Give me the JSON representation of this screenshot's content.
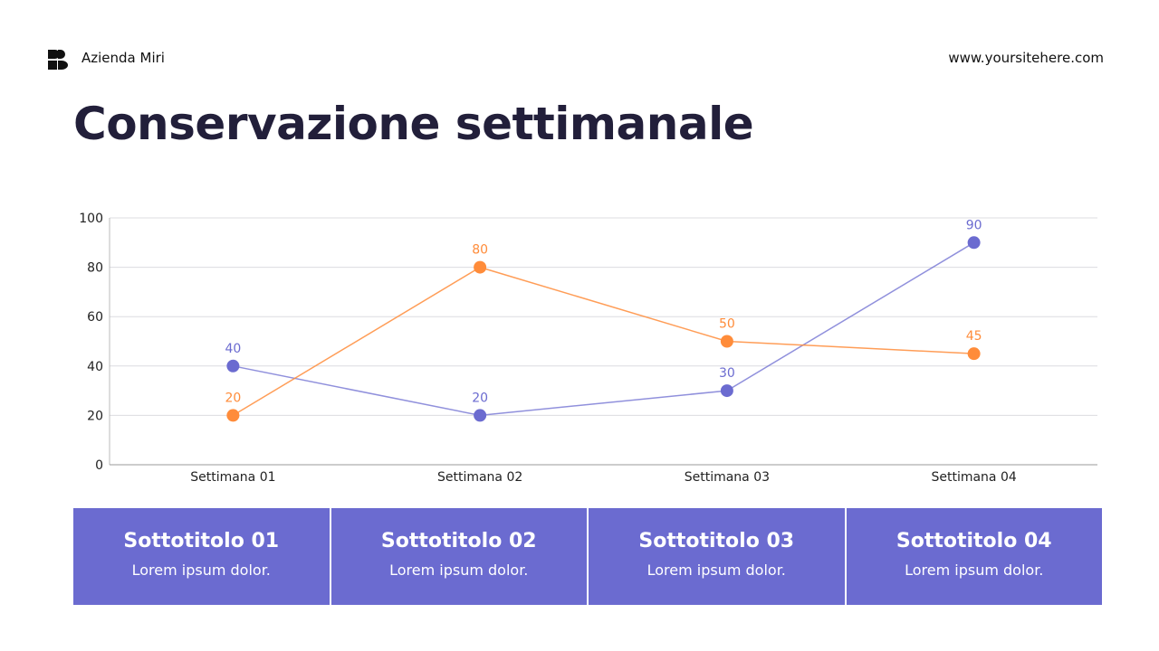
{
  "header": {
    "brand": "Azienda Miri",
    "site": "www.yoursitehere.com",
    "logo_icon": "brand-logo-icon"
  },
  "title": "Conservazione settimanale",
  "chart_data": {
    "type": "line",
    "categories": [
      "Settimana 01",
      "Settimana 02",
      "Settimana 03",
      "Settimana 04"
    ],
    "series": [
      {
        "values": [
          40,
          20,
          30,
          90
        ],
        "color": "#6b6bd0"
      },
      {
        "values": [
          20,
          80,
          50,
          45
        ],
        "color": "#ff8c3a"
      }
    ],
    "ylim": [
      0,
      100
    ],
    "yticks": [
      0,
      20,
      40,
      60,
      80,
      100
    ],
    "grid": true,
    "data_labels": true
  },
  "cards": [
    {
      "title": "Sottotitolo 01",
      "text": "Lorem ipsum dolor."
    },
    {
      "title": "Sottotitolo 02",
      "text": "Lorem ipsum dolor."
    },
    {
      "title": "Sottotitolo 03",
      "text": "Lorem ipsum dolor."
    },
    {
      "title": "Sottotitolo 04",
      "text": "Lorem ipsum dolor."
    }
  ]
}
